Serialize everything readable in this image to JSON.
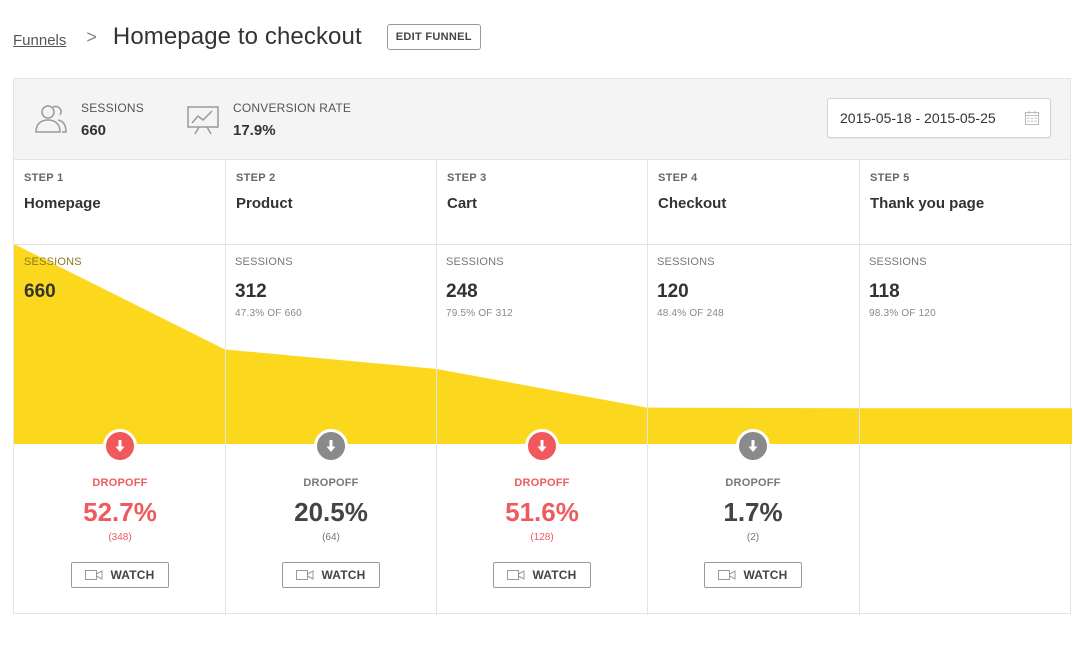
{
  "breadcrumb": {
    "parent": "Funnels",
    "separator": ">",
    "title": "Homepage to checkout"
  },
  "edit_button": "EDIT FUNNEL",
  "stats": {
    "sessions": {
      "label": "SESSIONS",
      "value": "660",
      "icon": "users-icon"
    },
    "conversion": {
      "label": "CONVERSION RATE",
      "value": "17.9%",
      "icon": "presentation-chart-icon"
    }
  },
  "date_range": {
    "value": "2015-05-18 - 2015-05-25",
    "icon": "calendar-icon"
  },
  "colors": {
    "funnel_fill": "#fbd71d",
    "dropoff_high": "#f0585c",
    "dropoff_low": "#8a8a8a",
    "stats_bg": "#f4f4f4"
  },
  "steps": [
    {
      "number": "STEP 1",
      "name": "Homepage",
      "sessions_label": "SESSIONS",
      "sessions": "660",
      "sub": ""
    },
    {
      "number": "STEP 2",
      "name": "Product",
      "sessions_label": "SESSIONS",
      "sessions": "312",
      "sub": "47.3% OF 660"
    },
    {
      "number": "STEP 3",
      "name": "Cart",
      "sessions_label": "SESSIONS",
      "sessions": "248",
      "sub": "79.5% OF 312"
    },
    {
      "number": "STEP 4",
      "name": "Checkout",
      "sessions_label": "SESSIONS",
      "sessions": "120",
      "sub": "48.4% OF 248"
    },
    {
      "number": "STEP 5",
      "name": "Thank you page",
      "sessions_label": "SESSIONS",
      "sessions": "118",
      "sub": "98.3% OF 120"
    }
  ],
  "dropoffs": [
    {
      "label": "DROPOFF",
      "percent": "52.7%",
      "count": "(348)",
      "severity": "high",
      "watch": "WATCH"
    },
    {
      "label": "DROPOFF",
      "percent": "20.5%",
      "count": "(64)",
      "severity": "low",
      "watch": "WATCH"
    },
    {
      "label": "DROPOFF",
      "percent": "51.6%",
      "count": "(128)",
      "severity": "high",
      "watch": "WATCH"
    },
    {
      "label": "DROPOFF",
      "percent": "1.7%",
      "count": "(2)",
      "severity": "low",
      "watch": "WATCH"
    }
  ],
  "funnel_sessions": [
    660,
    312,
    248,
    120,
    118
  ]
}
